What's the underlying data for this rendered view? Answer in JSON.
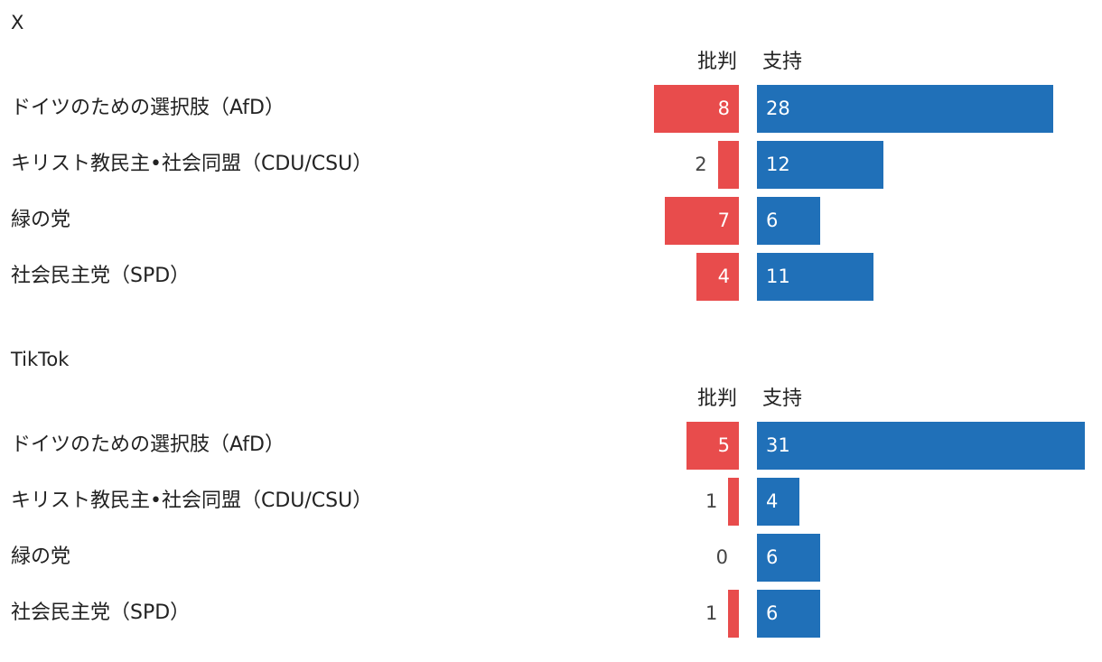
{
  "colors": {
    "criticism": "#e84c4c",
    "support": "#2070b8"
  },
  "chart_data": [
    {
      "type": "bar",
      "title": "X",
      "orientation": "horizontal-diverging",
      "column_headers": {
        "criticism": "批判",
        "support": "支持"
      },
      "categories": [
        "ドイツのための選択肢（AfD）",
        "キリスト教民主•社会同盟（CDU/CSU）",
        "緑の党",
        "社会民主党（SPD）"
      ],
      "series": [
        {
          "name": "批判",
          "values": [
            8,
            2,
            7,
            4
          ]
        },
        {
          "name": "支持",
          "values": [
            28,
            12,
            6,
            11
          ]
        }
      ]
    },
    {
      "type": "bar",
      "title": "TikTok",
      "orientation": "horizontal-diverging",
      "column_headers": {
        "criticism": "批判",
        "support": "支持"
      },
      "categories": [
        "ドイツのための選択肢（AfD）",
        "キリスト教民主•社会同盟（CDU/CSU）",
        "緑の党",
        "社会民主党（SPD）"
      ],
      "series": [
        {
          "name": "批判",
          "values": [
            5,
            1,
            0,
            1
          ]
        },
        {
          "name": "支持",
          "values": [
            31,
            4,
            6,
            6
          ]
        }
      ]
    }
  ]
}
